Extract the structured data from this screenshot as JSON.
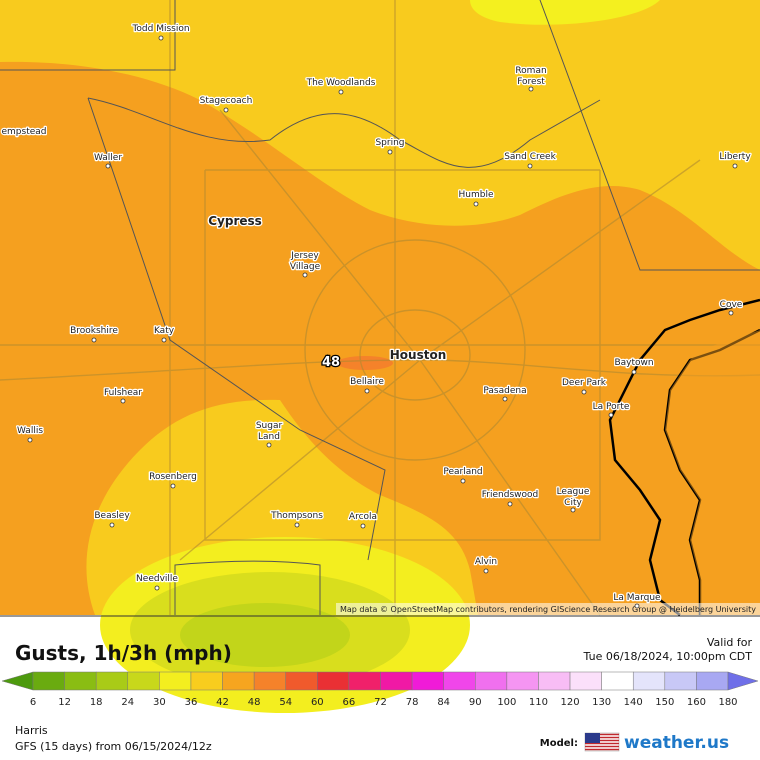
{
  "map": {
    "cities": [
      [
        "Todd Mission"
      ],
      [
        "The Woodlands"
      ],
      [
        "Roman",
        "Forest"
      ],
      [
        "Stagecoach"
      ],
      [
        "empstead"
      ],
      [
        "Waller"
      ],
      [
        "Spring"
      ],
      [
        "Sand Creek"
      ],
      [
        "Liberty"
      ],
      [
        "Humble"
      ],
      [
        "Cypress"
      ],
      [
        "Jersey",
        "Village"
      ],
      [
        "Cove"
      ],
      [
        "Brookshire"
      ],
      [
        "Katy"
      ],
      [
        "Houston"
      ],
      [
        "Baytown"
      ],
      [
        "Bellaire"
      ],
      [
        "Deer Park"
      ],
      [
        "Fulshear"
      ],
      [
        "Pasadena"
      ],
      [
        "La Porte"
      ],
      [
        "Wallis"
      ],
      [
        "Sugar",
        "Land"
      ],
      [
        "Rosenberg"
      ],
      [
        "Pearland"
      ],
      [
        "League",
        "City"
      ],
      [
        "Friendswood"
      ],
      [
        "Beasley"
      ],
      [
        "Thompsons"
      ],
      [
        "Arcola"
      ],
      [
        "Alvin"
      ],
      [
        "Needville"
      ],
      [
        "La Marque"
      ]
    ],
    "value_label": "48",
    "attribution": "Map data © OpenStreetMap contributors, rendering GIScience Research Group @ Heidelberg University"
  },
  "panel": {
    "title": "Gusts, 1h/3h (mph)",
    "valid_label": "Valid for",
    "valid_time": "Tue 06/18/2024, 10:00pm CDT",
    "region": "Harris",
    "model_run": "GFS (15 days) from  06/15/2024/12z",
    "model_label": "Model:",
    "brand": "weather.us"
  },
  "legend": {
    "ticks": [
      6,
      12,
      18,
      24,
      30,
      36,
      42,
      48,
      54,
      60,
      66,
      72,
      78,
      84,
      90,
      100,
      110,
      120,
      130,
      140,
      150,
      160,
      180
    ],
    "colors": [
      "#4d9a0e",
      "#6aab10",
      "#8abd13",
      "#a9cb17",
      "#c8d81b",
      "#f3ee1f",
      "#f8cd1e",
      "#f6a51f",
      "#f5822a",
      "#f05a2c",
      "#ea3034",
      "#f0206a",
      "#f019a5",
      "#f01bd8",
      "#f046ea",
      "#f070ee",
      "#f595f2",
      "#f8bdf5",
      "#fbe0fa",
      "#ffffff",
      "#e4e4fb",
      "#c8c8f6",
      "#a8a8f2",
      "#6f6fe8"
    ]
  }
}
